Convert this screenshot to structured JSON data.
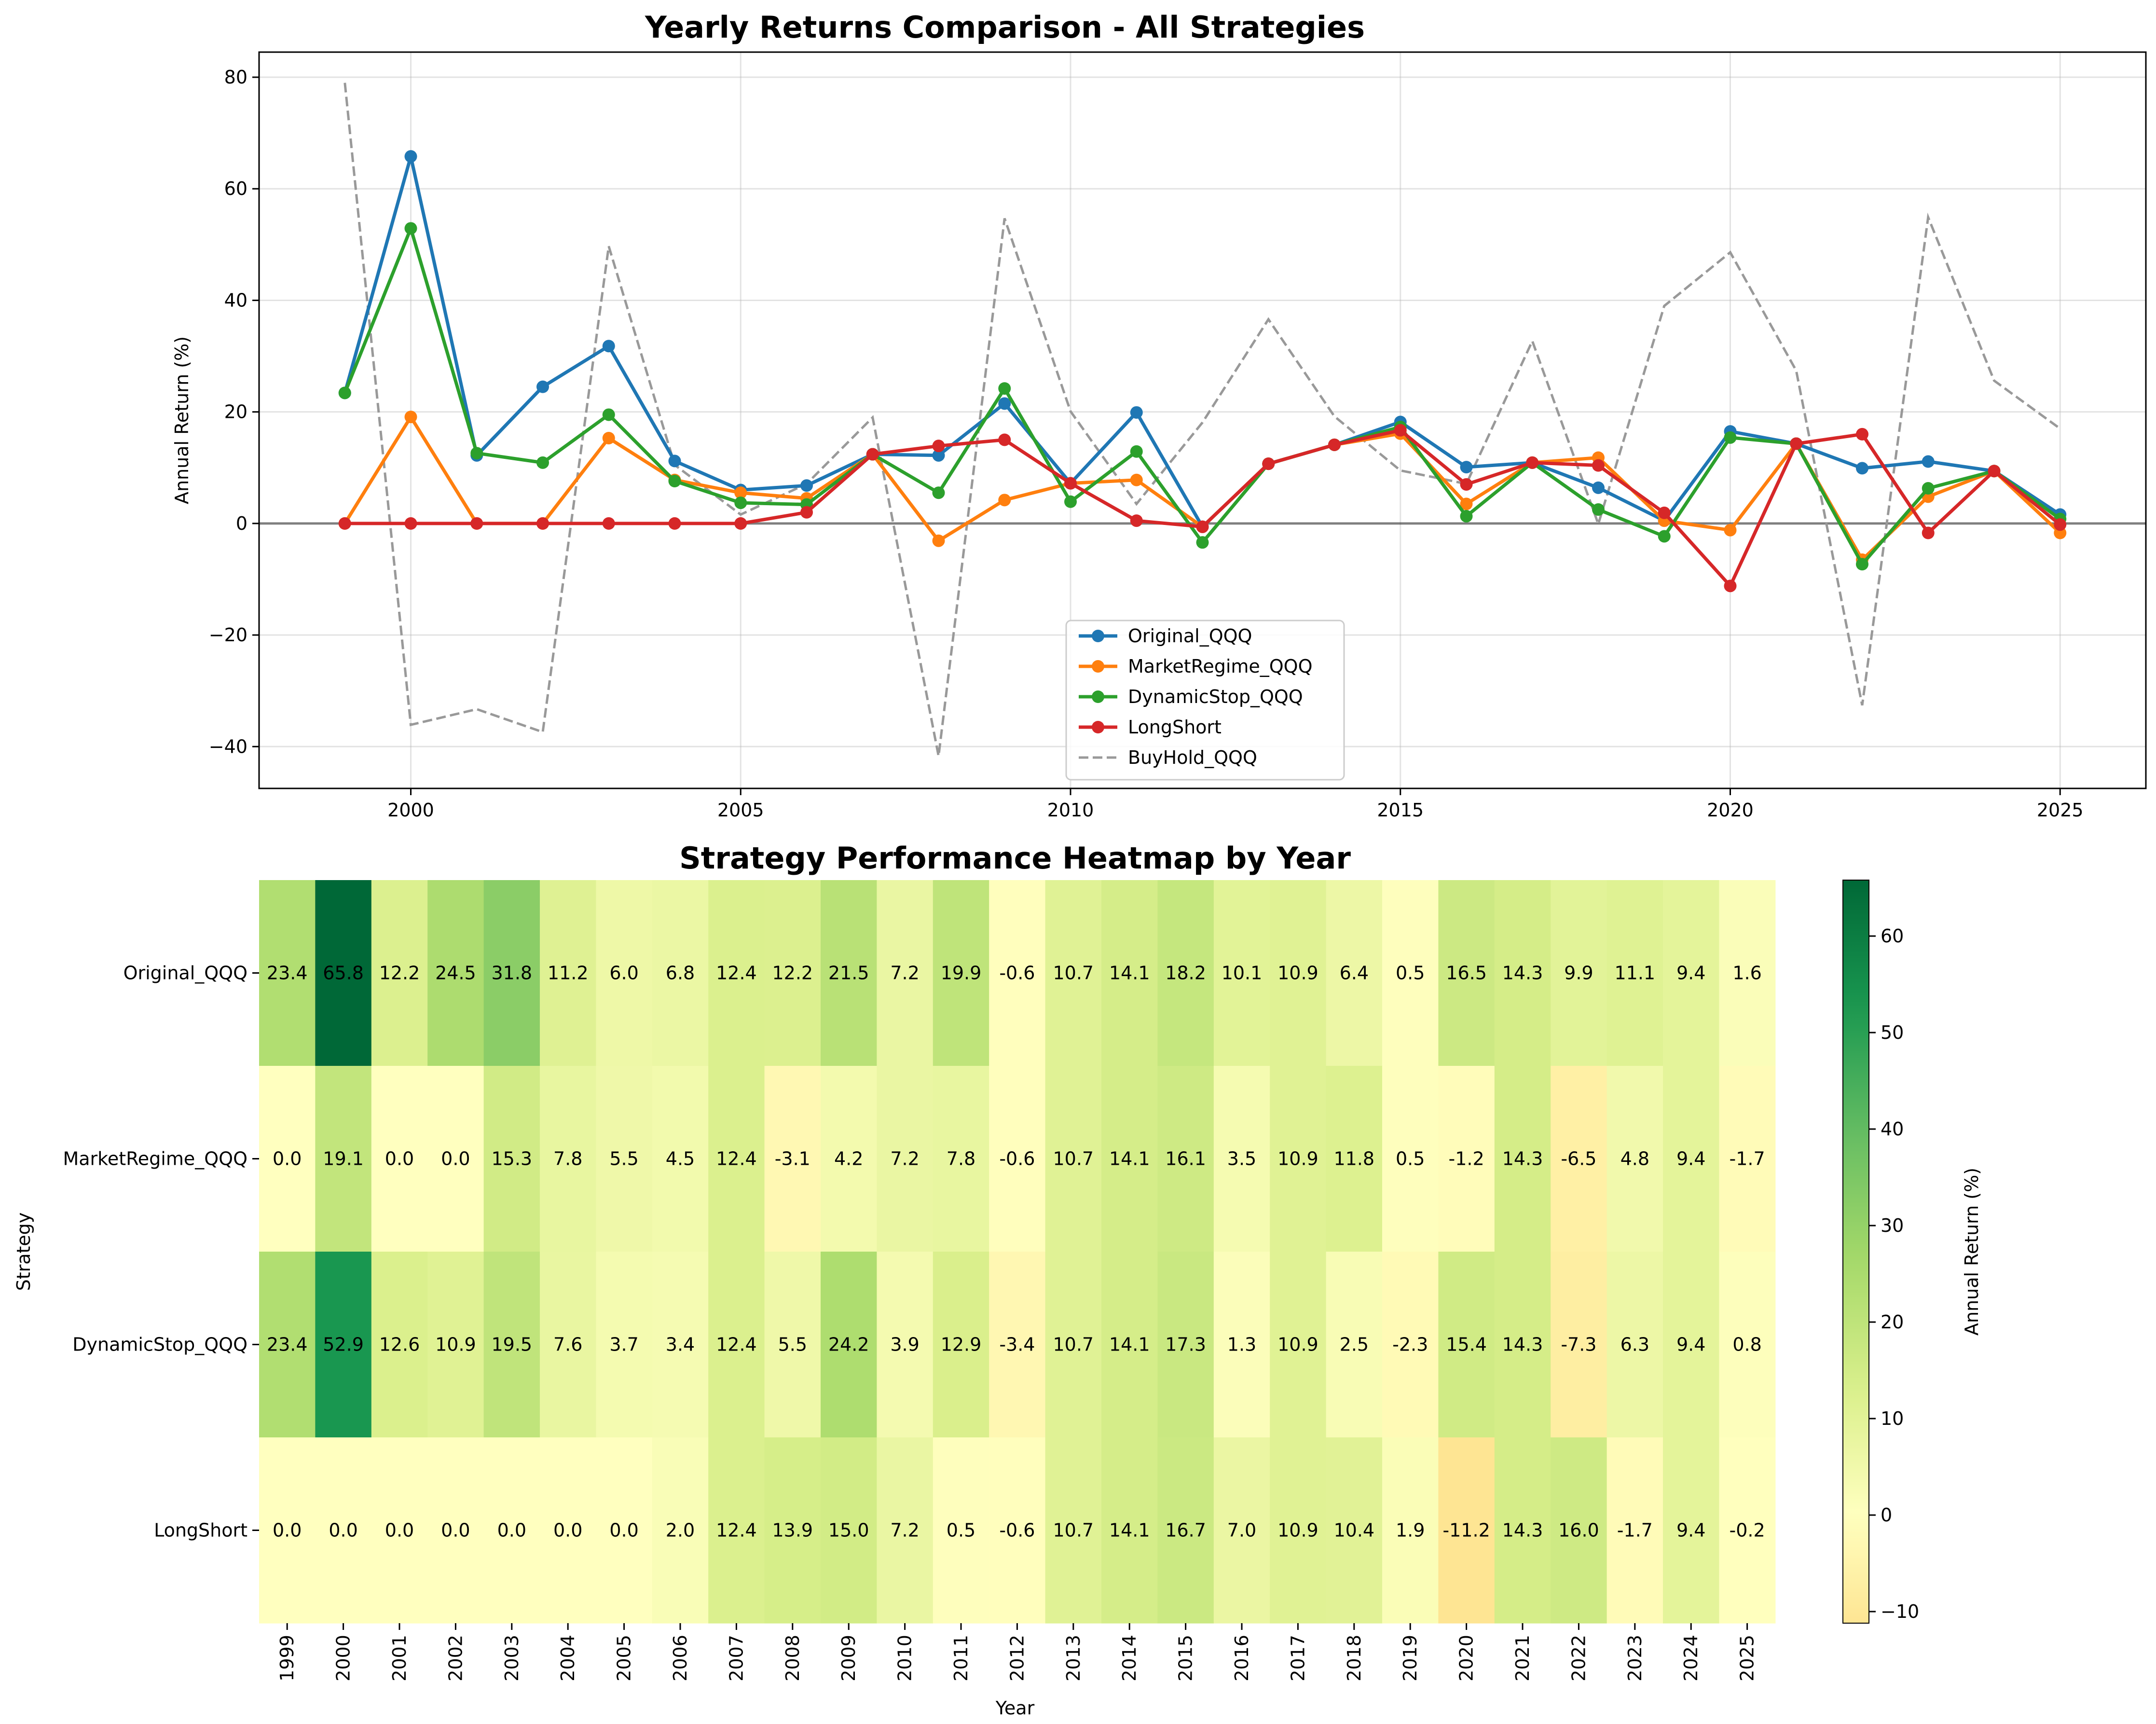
{
  "chart_data": [
    {
      "type": "line",
      "title": "Yearly Returns Comparison - All Strategies",
      "xlabel": "",
      "ylabel": "Annual Return (%)",
      "x": [
        1999,
        2000,
        2001,
        2002,
        2003,
        2004,
        2005,
        2006,
        2007,
        2008,
        2009,
        2010,
        2011,
        2012,
        2013,
        2014,
        2015,
        2016,
        2017,
        2018,
        2019,
        2020,
        2021,
        2022,
        2023,
        2024,
        2025
      ],
      "xlim": [
        1997.7,
        2026.3
      ],
      "ylim": [
        -47.5,
        84.5
      ],
      "xticks": [
        2000,
        2005,
        2010,
        2015,
        2020,
        2025
      ],
      "yticks": [
        -40,
        -20,
        0,
        20,
        40,
        60,
        80
      ],
      "grid": true,
      "legend": "lower center",
      "series": [
        {
          "name": "Original_QQQ",
          "color": "#1f77b4",
          "style": "solid-marker",
          "values": [
            23.4,
            65.8,
            12.2,
            24.5,
            31.8,
            11.2,
            6.0,
            6.8,
            12.4,
            12.2,
            21.5,
            7.2,
            19.9,
            -0.6,
            10.7,
            14.1,
            18.2,
            10.1,
            10.9,
            6.4,
            0.5,
            16.5,
            14.3,
            9.9,
            11.1,
            9.4,
            1.6
          ]
        },
        {
          "name": "MarketRegime_QQQ",
          "color": "#ff7f0e",
          "style": "solid-marker",
          "values": [
            0.0,
            19.1,
            0.0,
            0.0,
            15.3,
            7.8,
            5.5,
            4.5,
            12.4,
            -3.1,
            4.2,
            7.2,
            7.8,
            -0.6,
            10.7,
            14.1,
            16.1,
            3.5,
            10.9,
            11.8,
            0.5,
            -1.2,
            14.3,
            -6.5,
            4.8,
            9.4,
            -1.7
          ]
        },
        {
          "name": "DynamicStop_QQQ",
          "color": "#2ca02c",
          "style": "solid-marker",
          "values": [
            23.4,
            52.9,
            12.6,
            10.9,
            19.5,
            7.6,
            3.7,
            3.4,
            12.4,
            5.5,
            24.2,
            3.9,
            12.9,
            -3.4,
            10.7,
            14.1,
            17.3,
            1.3,
            10.9,
            2.5,
            -2.3,
            15.4,
            14.3,
            -7.3,
            6.3,
            9.4,
            0.8
          ]
        },
        {
          "name": "LongShort",
          "color": "#d62728",
          "style": "solid-marker",
          "values": [
            0.0,
            0.0,
            0.0,
            0.0,
            0.0,
            0.0,
            0.0,
            2.0,
            12.4,
            13.9,
            15.0,
            7.2,
            0.5,
            -0.6,
            10.7,
            14.1,
            16.7,
            7.0,
            10.9,
            10.4,
            1.9,
            -11.2,
            14.3,
            16.0,
            -1.7,
            9.4,
            -0.2
          ]
        },
        {
          "name": "BuyHold_QQQ",
          "color": "#999999",
          "style": "dashed",
          "values": [
            79,
            -36.1,
            -33.3,
            -37.4,
            49.7,
            10.5,
            1.6,
            7.1,
            19,
            -41.7,
            54.7,
            20.1,
            3.5,
            18.1,
            36.6,
            19.2,
            9.5,
            7.1,
            32.7,
            -0.1,
            39,
            48.6,
            27.4,
            -32.6,
            54.9,
            25.6,
            17
          ]
        }
      ]
    },
    {
      "type": "heatmap",
      "title": "Strategy Performance Heatmap by Year",
      "xlabel": "Year",
      "ylabel": "Strategy",
      "colorbar_label": "Annual Return (%)",
      "colormap": "RdYlGn",
      "vmin": -11.2,
      "vmax": 65.8,
      "colorbar_ticks": [
        -10,
        0,
        10,
        20,
        30,
        40,
        50,
        60
      ],
      "columns": [
        "1999",
        "2000",
        "2001",
        "2002",
        "2003",
        "2004",
        "2005",
        "2006",
        "2007",
        "2008",
        "2009",
        "2010",
        "2011",
        "2012",
        "2013",
        "2014",
        "2015",
        "2016",
        "2017",
        "2018",
        "2019",
        "2020",
        "2021",
        "2022",
        "2023",
        "2024",
        "2025"
      ],
      "rows": [
        "Original_QQQ",
        "MarketRegime_QQQ",
        "DynamicStop_QQQ",
        "LongShort"
      ],
      "values": [
        [
          23.4,
          65.8,
          12.2,
          24.5,
          31.8,
          11.2,
          6.0,
          6.8,
          12.4,
          12.2,
          21.5,
          7.2,
          19.9,
          -0.6,
          10.7,
          14.1,
          18.2,
          10.1,
          10.9,
          6.4,
          0.5,
          16.5,
          14.3,
          9.9,
          11.1,
          9.4,
          1.6
        ],
        [
          0.0,
          19.1,
          0.0,
          0.0,
          15.3,
          7.8,
          5.5,
          4.5,
          12.4,
          -3.1,
          4.2,
          7.2,
          7.8,
          -0.6,
          10.7,
          14.1,
          16.1,
          3.5,
          10.9,
          11.8,
          0.5,
          -1.2,
          14.3,
          -6.5,
          4.8,
          9.4,
          -1.7
        ],
        [
          23.4,
          52.9,
          12.6,
          10.9,
          19.5,
          7.6,
          3.7,
          3.4,
          12.4,
          5.5,
          24.2,
          3.9,
          12.9,
          -3.4,
          10.7,
          14.1,
          17.3,
          1.3,
          10.9,
          2.5,
          -2.3,
          15.4,
          14.3,
          -7.3,
          6.3,
          9.4,
          0.8
        ],
        [
          0.0,
          0.0,
          0.0,
          0.0,
          0.0,
          0.0,
          0.0,
          2.0,
          12.4,
          13.9,
          15.0,
          7.2,
          0.5,
          -0.6,
          10.7,
          14.1,
          16.7,
          7.0,
          10.9,
          10.4,
          1.9,
          -11.2,
          14.3,
          16.0,
          -1.7,
          9.4,
          -0.2
        ]
      ]
    }
  ]
}
